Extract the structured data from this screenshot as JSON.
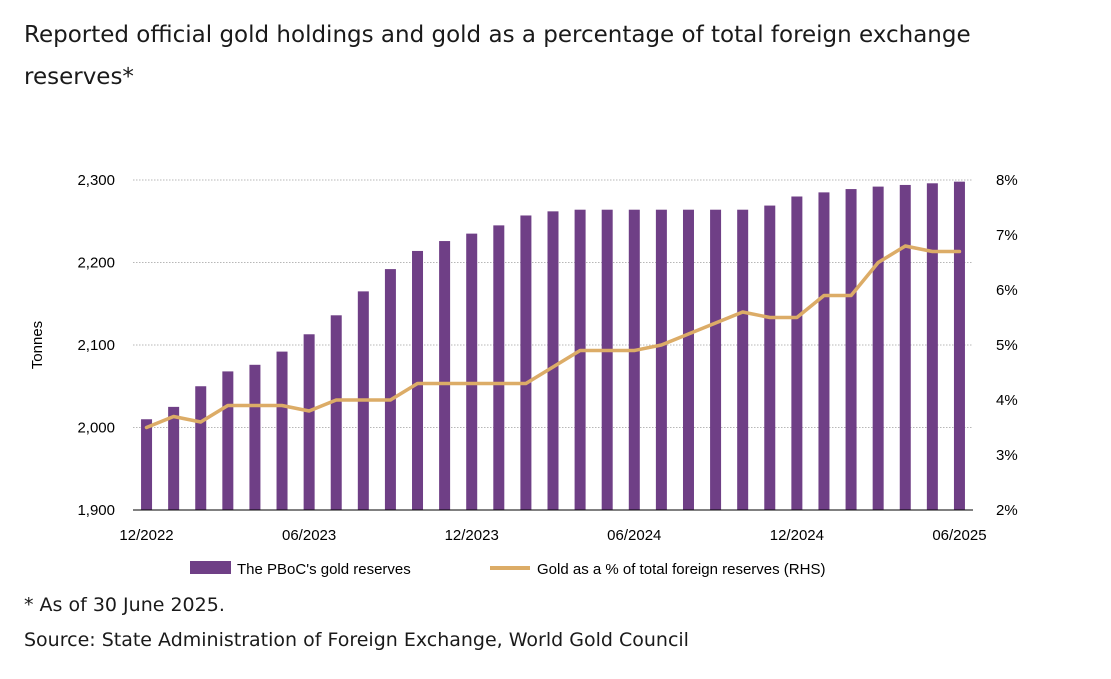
{
  "title": "Reported official gold holdings and gold as a percentage of total foreign exchange reserves*",
  "footnote": "* As of 30 June 2025.",
  "source": "Source: State Administration of Foreign Exchange, World Gold Council",
  "colors": {
    "bar": "#6f3f86",
    "line": "#dcac67",
    "grid": "#a0a0a0"
  },
  "chart_data": {
    "type": "bar",
    "ylabel": "Tonnes",
    "ylim": [
      1900,
      2300
    ],
    "yticks": [
      "1,900",
      "2,000",
      "2,100",
      "2,200",
      "2,300"
    ],
    "y2lim": [
      2,
      8
    ],
    "y2ticks": [
      "2%",
      "3%",
      "4%",
      "5%",
      "6%",
      "7%",
      "8%"
    ],
    "xticks": [
      "12/2022",
      "06/2023",
      "12/2023",
      "06/2024",
      "12/2024",
      "06/2025"
    ],
    "categories": [
      "12/2022",
      "01/2023",
      "02/2023",
      "03/2023",
      "04/2023",
      "05/2023",
      "06/2023",
      "07/2023",
      "08/2023",
      "09/2023",
      "10/2023",
      "11/2023",
      "12/2023",
      "01/2024",
      "02/2024",
      "03/2024",
      "04/2024",
      "05/2024",
      "06/2024",
      "07/2024",
      "08/2024",
      "09/2024",
      "10/2024",
      "11/2024",
      "12/2024",
      "01/2025",
      "02/2025",
      "03/2025",
      "04/2025",
      "05/2025",
      "06/2025"
    ],
    "series": [
      {
        "name": "The PBoC's gold reserves",
        "type": "bar",
        "axis": "left",
        "values": [
          2010,
          2025,
          2050,
          2068,
          2076,
          2092,
          2113,
          2136,
          2165,
          2192,
          2214,
          2226,
          2235,
          2245,
          2257,
          2262,
          2264,
          2264,
          2264,
          2264,
          2264,
          2264,
          2264,
          2269,
          2280,
          2285,
          2289,
          2292,
          2294,
          2296,
          2298
        ]
      },
      {
        "name": "Gold as a % of total foreign reserves (RHS)",
        "type": "line",
        "axis": "right",
        "values": [
          3.5,
          3.7,
          3.6,
          3.9,
          3.9,
          3.9,
          3.8,
          4.0,
          4.0,
          4.0,
          4.3,
          4.3,
          4.3,
          4.3,
          4.3,
          4.6,
          4.9,
          4.9,
          4.9,
          5.0,
          5.2,
          5.4,
          5.6,
          5.5,
          5.5,
          5.9,
          5.9,
          6.5,
          6.8,
          6.7,
          6.7
        ]
      }
    ],
    "legend_position": "bottom",
    "grid": true
  }
}
